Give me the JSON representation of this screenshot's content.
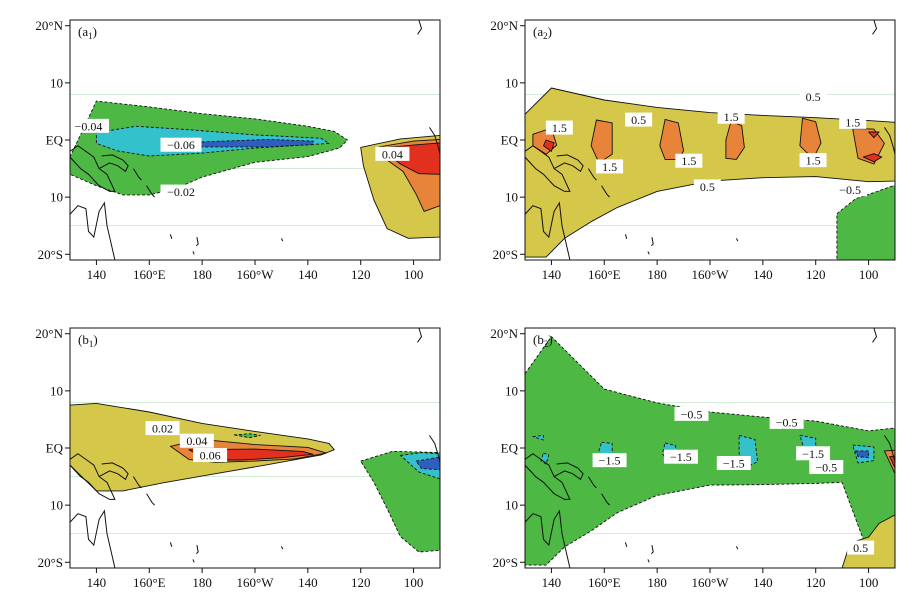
{
  "figure": {
    "colors": {
      "neg_strong": "#2e5fbf",
      "neg_mid": "#33c2cc",
      "neg_weak": "#4db844",
      "pos_weak": "#d4c74a",
      "pos_mid": "#e8843a",
      "pos_strong": "#e2301f",
      "coast": "#111111",
      "grid": "#b9e0c4"
    }
  },
  "chart_data": [
    {
      "type": "contour",
      "panel_label": "(a",
      "panel_label_sub": "1",
      "panel_label_close": ")",
      "xlim": [
        130,
        270
      ],
      "ylim": [
        -21,
        21
      ],
      "x_ticks": [
        140,
        160,
        180,
        200,
        220,
        240,
        260
      ],
      "x_tick_labels": [
        "140",
        "160°E",
        "180",
        "160°W",
        "140",
        "120",
        "100"
      ],
      "y_ticks": [
        20,
        10,
        0,
        -10,
        -20
      ],
      "y_tick_labels": [
        "20°N",
        "10",
        "EQ",
        "10",
        "20°S"
      ],
      "contour_labels": [
        {
          "text": "−0.04",
          "lon": 137,
          "lat": 2.3
        },
        {
          "text": "−0.06",
          "lon": 172,
          "lat": -1
        },
        {
          "text": "−0.02",
          "lon": 172,
          "lat": -9.2
        },
        {
          "text": "0.04",
          "lon": 252,
          "lat": -2.6
        }
      ],
      "regions": [
        {
          "level": "neg_weak",
          "lon": [
            130,
            140,
            160,
            180,
            200,
            220,
            230,
            235,
            232,
            220,
            200,
            180,
            170,
            160,
            150,
            140,
            130
          ],
          "lat": [
            -3,
            6.8,
            5.8,
            4.6,
            3.7,
            2.4,
            1.5,
            0,
            -1.4,
            -2.9,
            -3.9,
            -6.5,
            -8.5,
            -9.6,
            -9.6,
            -8,
            -6
          ]
        },
        {
          "level": "neg_mid",
          "lon": [
            140,
            155,
            175,
            200,
            225,
            228,
            200,
            180,
            160,
            148,
            140
          ],
          "lat": [
            1.3,
            2.4,
            1.8,
            0.9,
            0.3,
            -0.6,
            -1.4,
            -2.3,
            -2.8,
            -1.9,
            -0.6
          ]
        },
        {
          "level": "neg_strong",
          "lon": [
            176,
            205,
            222,
            222,
            205,
            180,
            176
          ],
          "lat": [
            -0.4,
            0.1,
            -0.2,
            -0.8,
            -1.2,
            -1.2,
            -0.8
          ]
        },
        {
          "level": "pos_weak",
          "lon": [
            240,
            255,
            270,
            270,
            258,
            250,
            245,
            241,
            240
          ],
          "lat": [
            -1.3,
            0.2,
            0.8,
            -17,
            -17.2,
            -15.5,
            -10.5,
            -4.5,
            -1.3
          ]
        },
        {
          "level": "pos_mid",
          "lon": [
            247,
            260,
            270,
            270,
            264,
            261,
            256,
            250,
            247
          ],
          "lat": [
            -1.2,
            -0.2,
            0.1,
            -11.5,
            -12.5,
            -9.5,
            -5.5,
            -3.5,
            -1.2
          ]
        },
        {
          "level": "pos_strong",
          "lon": [
            250,
            262,
            270,
            270,
            262,
            255,
            250
          ],
          "lat": [
            -1.3,
            -0.8,
            -0.5,
            -6,
            -5.9,
            -4.2,
            -2.4
          ]
        }
      ]
    },
    {
      "type": "contour",
      "panel_label": "(a",
      "panel_label_sub": "2",
      "panel_label_close": ")",
      "xlim": [
        130,
        270
      ],
      "ylim": [
        -21,
        21
      ],
      "x_ticks": [
        140,
        160,
        180,
        200,
        220,
        240,
        260
      ],
      "x_tick_labels": [
        "140",
        "160°E",
        "180",
        "160°W",
        "140",
        "120",
        "100"
      ],
      "y_ticks": [
        20,
        10,
        0,
        -10,
        -20
      ],
      "y_tick_labels": [
        "20°N",
        "10",
        "EQ",
        "10",
        "20°S"
      ],
      "contour_labels": [
        {
          "text": "1.5",
          "lon": 143,
          "lat": 2
        },
        {
          "text": "0.5",
          "lon": 173,
          "lat": 3.4
        },
        {
          "text": "1.5",
          "lon": 208,
          "lat": 3.9
        },
        {
          "text": "0.5",
          "lon": 239,
          "lat": 7.4
        },
        {
          "text": "1.5",
          "lon": 254,
          "lat": 3
        },
        {
          "text": "1.5",
          "lon": 162,
          "lat": -4.8
        },
        {
          "text": "1.5",
          "lon": 192,
          "lat": -3.8
        },
        {
          "text": "1.5",
          "lon": 239,
          "lat": -3.7
        },
        {
          "text": "0.5",
          "lon": 199,
          "lat": -8.3
        },
        {
          "text": "−0.5",
          "lon": 253,
          "lat": -8.8
        }
      ],
      "regions": [
        {
          "level": "pos_weak",
          "lon": [
            130,
            140,
            160,
            180,
            200,
            220,
            240,
            260,
            270,
            270,
            260,
            240,
            220,
            200,
            180,
            165,
            155,
            145,
            138,
            130
          ],
          "lat": [
            4.5,
            9.1,
            7,
            5.7,
            4.8,
            4.3,
            3.9,
            3.4,
            3.1,
            -7.2,
            -7.3,
            -6.4,
            -6.6,
            -7.2,
            -9,
            -11.8,
            -14.3,
            -17.2,
            -20.5,
            -20.5
          ]
        },
        {
          "level": "neg_weak",
          "lon": [
            248,
            255,
            262,
            270,
            270,
            248,
            248
          ],
          "lat": [
            -12.9,
            -10.3,
            -9.2,
            -7.9,
            -21,
            -21,
            -12.9
          ]
        },
        {
          "level": "pos_mid",
          "lon": [
            133,
            140,
            142,
            138,
            133
          ],
          "lat": [
            1,
            2.1,
            -0.9,
            -2.5,
            -1
          ]
        },
        {
          "level": "pos_mid",
          "lon": [
            157,
            163,
            163,
            158,
            155,
            157
          ],
          "lat": [
            3.5,
            3,
            -2.5,
            -4,
            -1,
            3.5
          ]
        },
        {
          "level": "pos_mid",
          "lon": [
            183,
            188,
            190,
            188,
            183,
            181,
            183
          ],
          "lat": [
            3.6,
            3,
            -1.9,
            -3.4,
            -3.4,
            -1,
            3.6
          ]
        },
        {
          "level": "pos_mid",
          "lon": [
            208,
            212,
            213,
            210,
            206,
            206,
            208
          ],
          "lat": [
            3.3,
            2.5,
            -1.3,
            -3.4,
            -3.2,
            0,
            3.3
          ]
        },
        {
          "level": "pos_mid",
          "lon": [
            235,
            240,
            242,
            239,
            234,
            235
          ],
          "lat": [
            3.8,
            3.2,
            -0.5,
            -3.3,
            -1,
            3.8
          ]
        },
        {
          "level": "pos_mid",
          "lon": [
            254,
            262,
            266,
            262,
            256,
            254
          ],
          "lat": [
            2,
            1.9,
            -0.6,
            -4.2,
            -3.2,
            2
          ]
        },
        {
          "level": "pos_strong",
          "lon": [
            260,
            264,
            262,
            260
          ],
          "lat": [
            1.4,
            1.4,
            0.4,
            1.4
          ]
        },
        {
          "level": "pos_strong",
          "lon": [
            258,
            262,
            265,
            262,
            258
          ],
          "lat": [
            -3,
            -2.4,
            -3,
            -3.8,
            -3
          ]
        },
        {
          "level": "pos_strong",
          "lon": [
            138,
            141,
            140,
            137,
            138
          ],
          "lat": [
            0,
            -0.5,
            -2,
            -1,
            0
          ]
        }
      ]
    },
    {
      "type": "contour",
      "panel_label": "(b",
      "panel_label_sub": "1",
      "panel_label_close": ")",
      "xlim": [
        130,
        270
      ],
      "ylim": [
        -21,
        21
      ],
      "x_ticks": [
        140,
        160,
        180,
        200,
        220,
        240,
        260
      ],
      "x_tick_labels": [
        "140",
        "160°E",
        "180",
        "160°W",
        "140",
        "120",
        "100"
      ],
      "y_ticks": [
        20,
        10,
        0,
        -10,
        -20
      ],
      "y_tick_labels": [
        "20°N",
        "10",
        "EQ",
        "10",
        "20°S"
      ],
      "contour_labels": [
        {
          "text": "0.02",
          "lon": 165,
          "lat": 3.3
        },
        {
          "text": "0.04",
          "lon": 178,
          "lat": 1.1
        },
        {
          "text": "0.06",
          "lon": 183,
          "lat": -1.4
        }
      ],
      "regions": [
        {
          "level": "pos_weak",
          "lon": [
            130,
            140,
            160,
            180,
            200,
            220,
            228,
            230,
            225,
            205,
            185,
            165,
            150,
            140,
            130
          ],
          "lat": [
            7.5,
            7.8,
            6.3,
            4.3,
            2.9,
            1.6,
            0.8,
            -0.3,
            -1.2,
            -2.9,
            -4.5,
            -6.1,
            -7.5,
            -7.5,
            -3
          ]
        },
        {
          "level": "pos_mid",
          "lon": [
            168,
            180,
            200,
            220,
            227,
            215,
            200,
            185,
            175,
            168
          ],
          "lat": [
            0.3,
            1.5,
            0.6,
            0.1,
            -0.9,
            -1.9,
            -2.3,
            -2.5,
            -2,
            0.3
          ]
        },
        {
          "level": "pos_strong",
          "lon": [
            175,
            200,
            218,
            222,
            210,
            195,
            182,
            175
          ],
          "lat": [
            -0.3,
            -0.2,
            -0.6,
            -1.1,
            -1.7,
            -2.1,
            -2.1,
            -0.3
          ]
        },
        {
          "level": "neg_weak",
          "lon": [
            240,
            252,
            262,
            270,
            270,
            262,
            255,
            250,
            245,
            240
          ],
          "lat": [
            -2.3,
            -0.6,
            -0.7,
            -0.8,
            -17.9,
            -18.2,
            -15.5,
            -10.6,
            -6,
            -2.3
          ]
        },
        {
          "level": "neg_mid",
          "lon": [
            255,
            263,
            270,
            270,
            262,
            255
          ],
          "lat": [
            -1.3,
            -0.8,
            -1,
            -5.4,
            -4.2,
            -1.3
          ]
        },
        {
          "level": "neg_strong",
          "lon": [
            261,
            270,
            270,
            263,
            261
          ],
          "lat": [
            -2.3,
            -1.6,
            -3.8,
            -3.6,
            -2.3
          ]
        },
        {
          "level": "neg_weak",
          "lon": [
            192,
            198,
            202,
            198,
            192
          ],
          "lat": [
            2.3,
            2.5,
            2.2,
            1.8,
            2.3
          ]
        }
      ]
    },
    {
      "type": "contour",
      "panel_label": "(b",
      "panel_label_sub": "2",
      "panel_label_close": ")",
      "xlim": [
        130,
        270
      ],
      "ylim": [
        -21,
        21
      ],
      "x_ticks": [
        140,
        160,
        180,
        200,
        220,
        240,
        260
      ],
      "x_tick_labels": [
        "140",
        "160°E",
        "180",
        "160°W",
        "140",
        "120",
        "100"
      ],
      "y_ticks": [
        20,
        10,
        0,
        -10,
        -20
      ],
      "y_tick_labels": [
        "20°N",
        "10",
        "EQ",
        "10",
        "20°S"
      ],
      "contour_labels": [
        {
          "text": "−0.5",
          "lon": 193,
          "lat": 5.8
        },
        {
          "text": "−0.5",
          "lon": 229,
          "lat": 4.4
        },
        {
          "text": "−1.5",
          "lon": 162,
          "lat": -2.3
        },
        {
          "text": "−1.5",
          "lon": 189,
          "lat": -1.7
        },
        {
          "text": "−1.5",
          "lon": 209,
          "lat": -2.8
        },
        {
          "text": "−1.5",
          "lon": 239,
          "lat": -1.1
        },
        {
          "text": "−0.5",
          "lon": 244,
          "lat": -3.5
        },
        {
          "text": "0.5",
          "lon": 257,
          "lat": -17.6
        }
      ],
      "regions": [
        {
          "level": "neg_weak",
          "lon": [
            130,
            140,
            160,
            180,
            200,
            220,
            240,
            260,
            270,
            270,
            262,
            250,
            240,
            220,
            200,
            180,
            165,
            155,
            145,
            138,
            130
          ],
          "lat": [
            13,
            19.5,
            10.3,
            7.9,
            6.3,
            5.4,
            4.7,
            3,
            3.5,
            -21,
            -21,
            -6,
            -6.2,
            -6.4,
            -6.5,
            -8.3,
            -11.3,
            -14.5,
            -17.3,
            -20.5,
            -20.5
          ]
        },
        {
          "level": "pos_weak",
          "lon": [
            253,
            260,
            264,
            270,
            270,
            250,
            253
          ],
          "lat": [
            -16.6,
            -15.6,
            -13.2,
            -11.7,
            -21,
            -21,
            -16.6
          ]
        },
        {
          "level": "neg_mid",
          "lon": [
            133,
            137,
            137,
            133
          ],
          "lat": [
            2,
            2.2,
            1.4,
            2
          ]
        },
        {
          "level": "neg_mid",
          "lon": [
            137,
            139,
            138,
            136,
            137
          ],
          "lat": [
            -0.9,
            -1.2,
            -2.8,
            -2.2,
            -0.9
          ]
        },
        {
          "level": "neg_mid",
          "lon": [
            159,
            163,
            163,
            160,
            158,
            159
          ],
          "lat": [
            1,
            0.8,
            -1.9,
            -2.2,
            -0.5,
            1
          ]
        },
        {
          "level": "neg_mid",
          "lon": [
            183,
            187,
            187,
            184,
            182,
            183
          ],
          "lat": [
            0.9,
            0.4,
            -2.3,
            -2.3,
            -1,
            0.9
          ]
        },
        {
          "level": "neg_mid",
          "lon": [
            211,
            217,
            218,
            214,
            211,
            211
          ],
          "lat": [
            2.2,
            1.5,
            -2.4,
            -3.3,
            -1,
            2.2
          ]
        },
        {
          "level": "neg_mid",
          "lon": [
            234,
            240,
            240,
            236,
            234
          ],
          "lat": [
            2.2,
            1.7,
            -1,
            -0.8,
            2.2
          ]
        },
        {
          "level": "neg_mid",
          "lon": [
            254,
            262,
            262,
            256,
            254
          ],
          "lat": [
            0.5,
            0.2,
            -2.2,
            -2.6,
            0.5
          ]
        },
        {
          "level": "neg_strong",
          "lon": [
            255,
            260,
            260,
            256,
            255
          ],
          "lat": [
            -0.5,
            -0.5,
            -1.7,
            -1.5,
            -0.5
          ]
        },
        {
          "level": "pos_mid",
          "lon": [
            266,
            270,
            270,
            266
          ],
          "lat": [
            -0.5,
            -0.4,
            -4.5,
            -0.5
          ]
        },
        {
          "level": "pos_strong",
          "lon": [
            268,
            270,
            270,
            268
          ],
          "lat": [
            -1.5,
            -1.4,
            -3.5,
            -1.5
          ]
        }
      ]
    }
  ]
}
